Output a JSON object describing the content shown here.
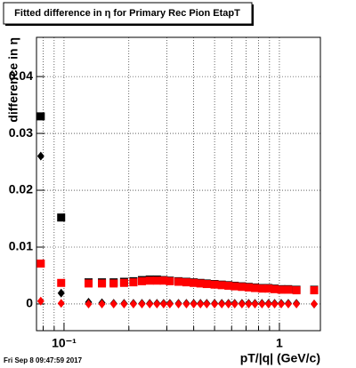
{
  "chart_data": {
    "type": "scatter",
    "title": "Fitted difference in  η for Primary Rec Pion EtapT",
    "x_label": "pT/|q| (GeV/c)",
    "y_label": "difference in  η",
    "footer": "Fri Sep  8 09:47:59 2017",
    "log_x": true,
    "grid": true,
    "xlim": [
      0.0745,
      1.55
    ],
    "ylim": [
      -0.0047,
      0.0469
    ],
    "xticks": [
      {
        "value": 0.1,
        "label": "10⁻¹"
      },
      1
    ],
    "xminorticks": [
      0.08,
      0.09,
      0.2,
      0.3,
      0.4,
      0.5,
      0.6,
      0.7,
      0.8,
      0.9
    ],
    "yticks": [
      0,
      0.01,
      0.02,
      0.03,
      0.04
    ],
    "x": [
      0.078,
      0.097,
      0.13,
      0.15,
      0.17,
      0.19,
      0.21,
      0.23,
      0.25,
      0.27,
      0.29,
      0.31,
      0.34,
      0.37,
      0.4,
      0.43,
      0.46,
      0.5,
      0.54,
      0.58,
      0.62,
      0.67,
      0.72,
      0.77,
      0.83,
      0.89,
      0.95,
      1.02,
      1.1,
      1.2,
      1.45
    ],
    "series": [
      {
        "color": "#000000",
        "marker": "square",
        "values": [
          0.033,
          0.0152,
          0.0038,
          0.0038,
          0.0038,
          0.0039,
          0.004,
          0.0042,
          0.0043,
          0.0043,
          0.0042,
          0.0041,
          0.004,
          0.0039,
          0.0038,
          0.0037,
          0.0036,
          0.0035,
          0.0034,
          0.0033,
          0.0032,
          0.0031,
          0.003,
          0.0029,
          0.0028,
          0.0028,
          0.0027,
          0.0026,
          0.0026,
          0.0025,
          0.0025
        ]
      },
      {
        "color": "#000000",
        "marker": "diamond",
        "values": [
          0.026,
          0.0019,
          0.0003,
          0.0002,
          0.0001,
          0.0001,
          0.0001,
          0.0001,
          0.0001,
          0.0001,
          0.0001,
          0.0001,
          0.0001,
          0.0001,
          0.0001,
          0.0001,
          0.0001,
          0.0001,
          0.0001,
          0.0001,
          0.0001,
          0.0001,
          0.0001,
          0.0001,
          0.0001,
          0.0001,
          0.0001,
          0.0001,
          0.0001,
          0.0001,
          0.0
        ]
      },
      {
        "color": "#ff0000",
        "marker": "square",
        "values": [
          0.0071,
          0.0037,
          0.0036,
          0.0036,
          0.0036,
          0.0037,
          0.0038,
          0.004,
          0.0041,
          0.0041,
          0.0041,
          0.004,
          0.0039,
          0.0038,
          0.0037,
          0.0036,
          0.0035,
          0.0034,
          0.0033,
          0.0032,
          0.0031,
          0.003,
          0.0029,
          0.0028,
          0.0027,
          0.0027,
          0.0026,
          0.0025,
          0.0025,
          0.0024,
          0.0024
        ]
      },
      {
        "color": "#ff0000",
        "marker": "diamond",
        "values": [
          0.0005,
          0.0001,
          0.0,
          0.0,
          0.0,
          0.0,
          0.0,
          0.0,
          0.0,
          0.0,
          0.0,
          0.0,
          0.0,
          0.0,
          0.0,
          0.0,
          0.0,
          0.0,
          0.0,
          0.0,
          0.0,
          0.0,
          0.0,
          0.0,
          0.0,
          0.0,
          0.0,
          0.0,
          0.0,
          0.0,
          0.0
        ]
      }
    ]
  }
}
